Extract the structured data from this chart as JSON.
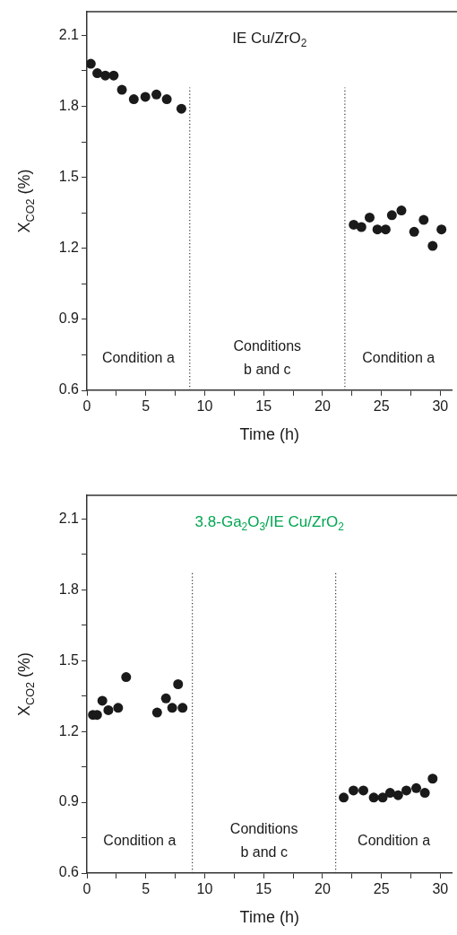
{
  "chart_data": [
    {
      "type": "scatter",
      "title": "IE Cu/ZrO$_{2}$",
      "xlabel": "Time (h)",
      "ylabel": "X$_{CO2}$ (%)",
      "x": [
        0.33,
        0.88,
        1.56,
        2.27,
        2.97,
        3.98,
        4.96,
        5.9,
        6.78,
        8.02,
        22.65,
        23.3,
        24.0,
        24.66,
        25.36,
        25.89,
        26.7,
        27.78,
        28.59,
        29.35,
        30.1
      ],
      "series": [
        {
          "color": "#1a1a1a",
          "values": [
            1.98,
            1.94,
            1.93,
            1.93,
            1.87,
            1.83,
            1.84,
            1.85,
            1.83,
            1.79,
            1.3,
            1.29,
            1.33,
            1.28,
            1.28,
            1.34,
            1.36,
            1.27,
            1.32,
            1.21,
            1.28
          ]
        }
      ],
      "xlim": [
        0,
        31
      ],
      "ylim": [
        0.6,
        2.2
      ],
      "xticks": [
        0,
        {
          "value": 2.5,
          "label": null
        },
        5,
        {
          "value": 7.5,
          "label": null
        },
        10,
        {
          "value": 12.5,
          "label": null
        },
        15,
        {
          "value": 17.5,
          "label": null
        },
        20,
        {
          "value": 22.5,
          "label": null
        },
        25,
        {
          "value": 27.5,
          "label": null
        },
        30
      ],
      "yticks": [
        0.6,
        {
          "value": 0.75,
          "label": null
        },
        0.9,
        {
          "value": 1.05,
          "label": null
        },
        1.2,
        {
          "value": 1.35,
          "label": null
        },
        1.5,
        {
          "value": 1.65,
          "label": null
        },
        1.8,
        {
          "value": 1.95,
          "label": null
        },
        2.1
      ],
      "ref_lines": [
        {
          "axis": "x",
          "value": 8.73,
          "label": null,
          "color": "#333333",
          "line_style": "dotted"
        },
        {
          "axis": "x",
          "value": 21.9,
          "label": null,
          "color": "#333333",
          "line_style": "dotted"
        }
      ],
      "annotations": [
        "Condition a",
        "Conditions\nb and c",
        "Condition a"
      ],
      "marker": "circle",
      "grid": false,
      "legend": false
    },
    {
      "type": "scatter",
      "title": "3.8-Ga$_{2}$O$_{3}$/IE Cu/ZrO$_{2}$",
      "xlabel": "Time (h)",
      "ylabel": "X$_{CO2}$ (%)",
      "x": [
        0.51,
        0.86,
        1.31,
        1.82,
        2.65,
        3.33,
        5.96,
        6.71,
        7.24,
        7.74,
        8.12,
        21.8,
        22.63,
        23.47,
        24.35,
        25.11,
        25.74,
        26.42,
        27.12,
        27.96,
        28.69,
        29.35
      ],
      "series": [
        {
          "color": "#1a1a1a",
          "values": [
            1.27,
            1.27,
            1.33,
            1.29,
            1.3,
            1.43,
            1.28,
            1.34,
            1.3,
            1.4,
            1.3,
            0.92,
            0.95,
            0.95,
            0.92,
            0.92,
            0.94,
            0.93,
            0.95,
            0.96,
            0.94,
            1.0
          ]
        }
      ],
      "xlim": [
        0,
        31
      ],
      "ylim": [
        0.6,
        2.2
      ],
      "xticks": [
        0,
        {
          "value": 2.5,
          "label": null
        },
        5,
        {
          "value": 7.5,
          "label": null
        },
        10,
        {
          "value": 12.5,
          "label": null
        },
        15,
        {
          "value": 17.5,
          "label": null
        },
        20,
        {
          "value": 22.5,
          "label": null
        },
        25,
        {
          "value": 27.5,
          "label": null
        },
        30
      ],
      "yticks": [
        0.6,
        {
          "value": 0.75,
          "label": null
        },
        0.9,
        {
          "value": 1.05,
          "label": null
        },
        1.2,
        {
          "value": 1.35,
          "label": null
        },
        1.5,
        {
          "value": 1.65,
          "label": null
        },
        1.8,
        {
          "value": 1.95,
          "label": null
        },
        2.1
      ],
      "ref_lines": [
        {
          "axis": "x",
          "value": 8.95,
          "label": null,
          "color": "#333333",
          "line_style": "dotted"
        },
        {
          "axis": "x",
          "value": 21.12,
          "label": null,
          "color": "#333333",
          "line_style": "dotted"
        }
      ],
      "annotations": [
        "Condition a",
        "Conditions\nb and c",
        "Condition a"
      ],
      "marker": "circle",
      "grid": false,
      "legend": false
    }
  ]
}
